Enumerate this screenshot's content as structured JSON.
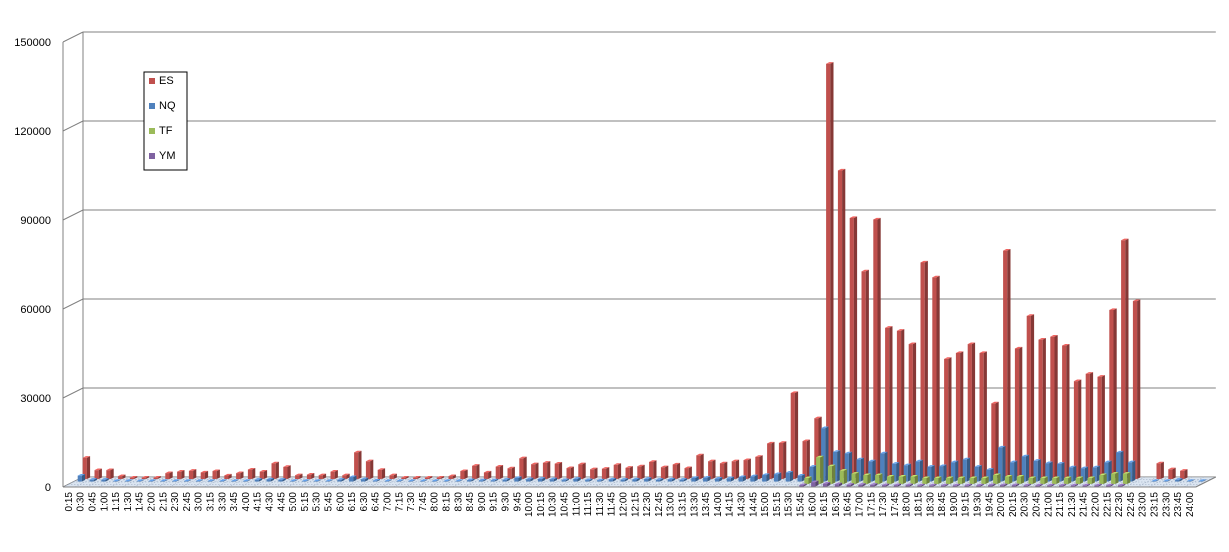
{
  "chart_data": {
    "type": "bar",
    "title": "",
    "xlabel": "",
    "ylabel": "",
    "ylim": [
      0,
      150000
    ],
    "y_ticks": [
      0,
      30000,
      60000,
      90000,
      120000,
      150000
    ],
    "y_tick_labels": [
      "0",
      "30000",
      "60000",
      "90000",
      "120000",
      "150000"
    ],
    "grid": true,
    "legend_position": "top-left",
    "categories": [
      "0:15",
      "0:30",
      "0:45",
      "1:00",
      "1:15",
      "1:30",
      "1:45",
      "2:00",
      "2:15",
      "2:30",
      "2:45",
      "3:00",
      "3:15",
      "3:30",
      "3:45",
      "4:00",
      "4:15",
      "4:30",
      "4:45",
      "5:00",
      "5:15",
      "5:30",
      "5:45",
      "6:00",
      "6:15",
      "6:30",
      "6:45",
      "7:00",
      "7:15",
      "7:30",
      "7:45",
      "8:00",
      "8:15",
      "8:30",
      "8:45",
      "9:00",
      "9:15",
      "9:30",
      "9:45",
      "10:00",
      "10:15",
      "10:30",
      "10:45",
      "11:00",
      "11:15",
      "11:30",
      "11:45",
      "12:00",
      "12:15",
      "12:30",
      "12:45",
      "13:00",
      "13:15",
      "13:30",
      "13:45",
      "14:00",
      "14:15",
      "14:30",
      "14:45",
      "15:00",
      "15:15",
      "15:30",
      "15:45",
      "16:00",
      "16:15",
      "16:30",
      "16:45",
      "17:00",
      "17:15",
      "17:30",
      "17:45",
      "18:00",
      "18:15",
      "18:30",
      "18:45",
      "19:00",
      "19:15",
      "19:30",
      "19:45",
      "20:00",
      "20:15",
      "20:30",
      "20:45",
      "21:00",
      "21:15",
      "21:30",
      "21:45",
      "22:00",
      "22:15",
      "22:30",
      "22:45",
      "23:00",
      "23:15",
      "23:30",
      "23:45",
      "24:00"
    ],
    "x_tick_labels": [
      "0:15",
      "0:30",
      "0:45",
      "1:00",
      "1:15",
      "1:30",
      "1:45",
      "2:00",
      "2:15",
      "2:30",
      "2:45",
      "3:00",
      "3:15",
      "3:30",
      "3:45",
      "4:00",
      "4:15",
      "4:30",
      "4:45",
      "5:00",
      "5:15",
      "5:30",
      "5:45",
      "6:00",
      "6:15",
      "6:30",
      "6:45",
      "7:00",
      "7:15",
      "7:30",
      "7:45",
      "8:00",
      "8:15",
      "8:30",
      "8:45",
      "9:00",
      "9:15",
      "9:30",
      "9:45",
      "10:00",
      "10:15",
      "10:30",
      "10:45",
      "11:00",
      "11:15",
      "11:30",
      "11:45",
      "12:00",
      "12:15",
      "12:30",
      "12:45",
      "13:00",
      "13:15",
      "13:30",
      "13:45",
      "14:00",
      "14:15",
      "14:30",
      "14:45",
      "15:00",
      "15:15",
      "15:30",
      "15:45",
      "16:00",
      "16:15",
      "16:30",
      "16:45",
      "17:00",
      "17:15",
      "17:30",
      "17:45",
      "18:00",
      "18:15",
      "18:30",
      "18:45",
      "19:00",
      "19:15",
      "19:30",
      "19:45",
      "20:00",
      "20:15",
      "20:30",
      "20:45",
      "21:00",
      "21:15",
      "21:30",
      "21:45",
      "22:00",
      "22:15",
      "22:30",
      "22:45",
      "23:00",
      "23:15",
      "23:30",
      "23:45",
      "24:00"
    ],
    "series": [
      {
        "name": "YM",
        "color": "#7f62a1",
        "values": [
          0,
          0,
          0,
          0,
          0,
          0,
          0,
          0,
          0,
          0,
          0,
          0,
          0,
          0,
          0,
          0,
          0,
          0,
          0,
          0,
          0,
          0,
          0,
          0,
          0,
          0,
          0,
          0,
          0,
          0,
          0,
          0,
          0,
          0,
          0,
          0,
          0,
          0,
          0,
          0,
          0,
          0,
          0,
          0,
          0,
          0,
          0,
          0,
          0,
          0,
          0,
          0,
          0,
          0,
          0,
          0,
          0,
          0,
          0,
          0,
          0,
          0,
          500,
          1500,
          1000,
          800,
          600,
          600,
          600,
          500,
          500,
          500,
          400,
          400,
          400,
          400,
          400,
          400,
          500,
          500,
          500,
          400,
          400,
          400,
          400,
          400,
          400,
          400,
          400,
          400,
          0,
          0,
          0,
          0,
          0,
          0
        ]
      },
      {
        "name": "TF",
        "color": "#9bbb59",
        "values": [
          0,
          0,
          0,
          0,
          0,
          0,
          0,
          0,
          0,
          0,
          0,
          0,
          0,
          0,
          0,
          0,
          0,
          0,
          0,
          0,
          0,
          0,
          0,
          0,
          0,
          0,
          0,
          0,
          0,
          0,
          0,
          0,
          0,
          0,
          0,
          0,
          0,
          0,
          0,
          0,
          0,
          0,
          0,
          0,
          0,
          0,
          0,
          0,
          0,
          0,
          0,
          0,
          0,
          0,
          0,
          0,
          0,
          0,
          0,
          0,
          0,
          0,
          2000,
          9000,
          6000,
          4500,
          3500,
          3000,
          3000,
          2500,
          2500,
          2500,
          2000,
          2000,
          2000,
          2000,
          2000,
          2000,
          3000,
          2500,
          2500,
          2000,
          2000,
          2000,
          2000,
          2000,
          2000,
          3000,
          3500,
          3500,
          0,
          0,
          0,
          0,
          0,
          0
        ]
      },
      {
        "name": "NQ",
        "color": "#4f81bd",
        "values": [
          2000,
          600,
          600,
          200,
          200,
          200,
          200,
          200,
          200,
          200,
          200,
          200,
          200,
          200,
          200,
          600,
          700,
          600,
          200,
          200,
          200,
          200,
          600,
          1500,
          800,
          300,
          200,
          200,
          200,
          200,
          200,
          200,
          200,
          500,
          400,
          400,
          600,
          1200,
          800,
          900,
          800,
          500,
          900,
          500,
          400,
          700,
          600,
          700,
          900,
          600,
          700,
          600,
          1200,
          1300,
          1000,
          1100,
          1500,
          1800,
          2200,
          2500,
          3000,
          2000,
          5000,
          18000,
          10000,
          9500,
          7500,
          6800,
          9500,
          6000,
          5500,
          6800,
          5000,
          5200,
          6500,
          7500,
          5000,
          4000,
          11500,
          6500,
          8500,
          7000,
          6200,
          6000,
          4800,
          4500,
          4800,
          6500,
          9800,
          6500,
          0,
          200,
          200,
          600,
          200,
          200
        ]
      },
      {
        "name": "ES",
        "color": "#c0504d",
        "values": [
          7200,
          3000,
          3000,
          1000,
          500,
          500,
          500,
          2000,
          2500,
          2800,
          2200,
          2700,
          1200,
          2000,
          3200,
          2500,
          5300,
          4100,
          1300,
          1500,
          1300,
          2500,
          1300,
          9000,
          6000,
          3100,
          1300,
          500,
          500,
          500,
          500,
          1000,
          2700,
          4500,
          2200,
          4200,
          3600,
          7000,
          5000,
          5500,
          5200,
          3700,
          5000,
          3300,
          3500,
          4800,
          3800,
          4300,
          5800,
          4000,
          4900,
          3700,
          8000,
          6000,
          5300,
          6000,
          6400,
          7500,
          12000,
          12200,
          29000,
          12800,
          20500,
          140000,
          104000,
          88000,
          70000,
          87500,
          51000,
          50000,
          45500,
          73000,
          68000,
          40500,
          42500,
          45500,
          42500,
          25500,
          77000,
          44000,
          55000,
          47000,
          48000,
          45000,
          33000,
          35500,
          34500,
          57000,
          80500,
          60000,
          0,
          5300,
          3300,
          2800,
          0,
          0
        ]
      }
    ]
  }
}
